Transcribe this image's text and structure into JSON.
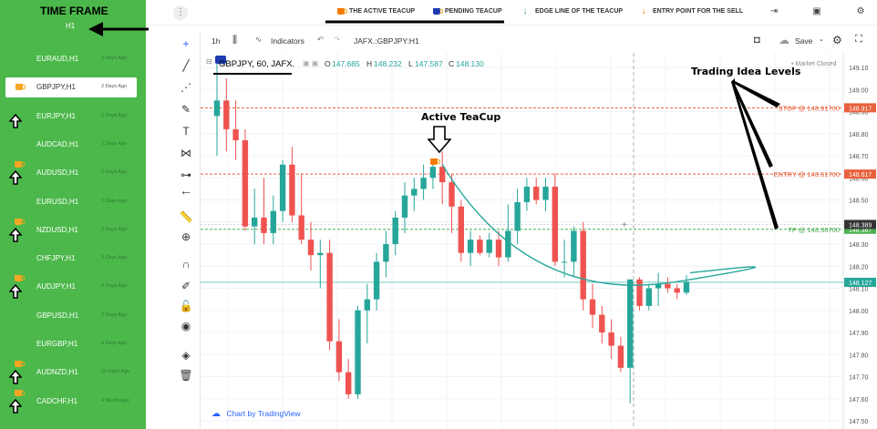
{
  "sidebar": {
    "title": "TIME FRAME",
    "timeframe": "H1",
    "items": [
      {
        "symbol": "EURAUD,H1",
        "age": "2 Days Ago",
        "active": false,
        "cup": false,
        "arrow": false
      },
      {
        "symbol": "GBPJPY,H1",
        "age": "2 Days Ago",
        "active": true,
        "cup": true,
        "arrow": false
      },
      {
        "symbol": "EURJPY,H1",
        "age": "2 Days Ago",
        "active": false,
        "cup": false,
        "arrow": true
      },
      {
        "symbol": "AUDCAD,H1",
        "age": "2 Days Ago",
        "active": false,
        "cup": false,
        "arrow": false
      },
      {
        "symbol": "AUDUSD,H1",
        "age": "2 Days Ago",
        "active": false,
        "cup": true,
        "arrow": true
      },
      {
        "symbol": "EURUSD,H1",
        "age": "2 Days Ago",
        "active": false,
        "cup": false,
        "arrow": false
      },
      {
        "symbol": "NZDUSD,H1",
        "age": "3 Days Ago",
        "active": false,
        "cup": true,
        "arrow": true
      },
      {
        "symbol": "CHFJPY,H1",
        "age": "3 Days Ago",
        "active": false,
        "cup": false,
        "arrow": false
      },
      {
        "symbol": "AUDJPY,H1",
        "age": "3 Days Ago",
        "active": false,
        "cup": true,
        "arrow": true
      },
      {
        "symbol": "GBPUSD,H1",
        "age": "3 Days Ago",
        "active": false,
        "cup": false,
        "arrow": false
      },
      {
        "symbol": "EURGBP,H1",
        "age": "4 Days Ago",
        "active": false,
        "cup": false,
        "arrow": false
      },
      {
        "symbol": "AUDNZD,H1",
        "age": "10 Days Ago",
        "active": false,
        "cup": true,
        "arrow": true
      },
      {
        "symbol": "CADCHF,H1",
        "age": "4 Month Ago",
        "active": false,
        "cup": true,
        "arrow": true
      }
    ]
  },
  "topbar": {
    "kebab": "⋮",
    "legend": [
      {
        "label": "THE ACTIVE TEACUP",
        "icon": "teacup-icon",
        "color": "#f57c00"
      },
      {
        "label": "PENDING TEACUP",
        "icon": "teacup-icon",
        "color": "#1e3ab0"
      },
      {
        "label": "EDGE LINE OF THE TEACUP",
        "icon": "arrow-down-icon",
        "color": "#2e9e5b"
      },
      {
        "label": "ENTRY POINT FOR THE SELL",
        "icon": "arrow-down-icon",
        "color": "#f57c00"
      }
    ]
  },
  "toolbar": {
    "interval": "1h",
    "indicators": "Indicators",
    "symbol": "JAFX.:GBPJPY:H1",
    "save": "Save"
  },
  "chart_header": {
    "symbol": "GBPJPY, 60, JAFX.",
    "o_label": "O",
    "o": "147.685",
    "h_label": "H",
    "h": "148.232",
    "l_label": "L",
    "l": "147.587",
    "c_label": "C",
    "c": "148.130",
    "market": "Market Closed",
    "branding": "Chart by TradingView"
  },
  "annotations": {
    "active_teacup": "Active TeaCup",
    "trading_idea": "Trading Idea Levels"
  },
  "chart_data": {
    "type": "candlestick",
    "ylim": [
      147.5,
      149.1
    ],
    "y_ticks": [
      "149.10",
      "149.00",
      "148.90",
      "148.80",
      "148.70",
      "148.60",
      "148.50",
      "148.40",
      "148.30",
      "148.20",
      "148.10",
      "148.00",
      "147.90",
      "147.80",
      "147.70",
      "147.60",
      "147.50"
    ],
    "levels": [
      {
        "name": "STOP",
        "label": "STOP @ 148.91700",
        "value": 148.917,
        "tag": "148.917",
        "color": "#e8603c"
      },
      {
        "name": "ENTRY",
        "label": "ENTRY @ 148.61700",
        "value": 148.617,
        "tag": "148.617",
        "color": "#e8603c"
      },
      {
        "name": "TP",
        "label": "TP @ 148.36700",
        "value": 148.367,
        "tag": "148.367",
        "color": "#4caf50"
      }
    ],
    "price_tags": [
      {
        "value": 148.389,
        "label": "148.389",
        "color": "#333333"
      },
      {
        "value": 148.127,
        "label": "148.127",
        "color": "#26a69a"
      }
    ],
    "candles": [
      {
        "o": 148.88,
        "h": 149.12,
        "l": 148.7,
        "c": 148.95
      },
      {
        "o": 148.95,
        "h": 149.05,
        "l": 148.72,
        "c": 148.82
      },
      {
        "o": 148.82,
        "h": 148.95,
        "l": 148.68,
        "c": 148.77
      },
      {
        "o": 148.77,
        "h": 148.82,
        "l": 148.36,
        "c": 148.38
      },
      {
        "o": 148.38,
        "h": 148.55,
        "l": 148.3,
        "c": 148.42
      },
      {
        "o": 148.42,
        "h": 148.6,
        "l": 148.3,
        "c": 148.35
      },
      {
        "o": 148.35,
        "h": 148.52,
        "l": 148.3,
        "c": 148.45
      },
      {
        "o": 148.45,
        "h": 148.68,
        "l": 148.4,
        "c": 148.66
      },
      {
        "o": 148.66,
        "h": 148.74,
        "l": 148.4,
        "c": 148.43
      },
      {
        "o": 148.43,
        "h": 148.62,
        "l": 148.3,
        "c": 148.32
      },
      {
        "o": 148.32,
        "h": 148.4,
        "l": 148.18,
        "c": 148.25
      },
      {
        "o": 148.25,
        "h": 148.32,
        "l": 148.1,
        "c": 148.26
      },
      {
        "o": 148.26,
        "h": 148.32,
        "l": 147.82,
        "c": 147.86
      },
      {
        "o": 147.86,
        "h": 147.96,
        "l": 147.68,
        "c": 147.72
      },
      {
        "o": 147.72,
        "h": 147.78,
        "l": 147.6,
        "c": 147.62
      },
      {
        "o": 147.62,
        "h": 148.02,
        "l": 147.6,
        "c": 148.0
      },
      {
        "o": 148.0,
        "h": 148.12,
        "l": 147.85,
        "c": 148.05
      },
      {
        "o": 148.05,
        "h": 148.26,
        "l": 148.0,
        "c": 148.22
      },
      {
        "o": 148.22,
        "h": 148.36,
        "l": 148.15,
        "c": 148.3
      },
      {
        "o": 148.3,
        "h": 148.45,
        "l": 148.25,
        "c": 148.42
      },
      {
        "o": 148.42,
        "h": 148.58,
        "l": 148.35,
        "c": 148.52
      },
      {
        "o": 148.52,
        "h": 148.6,
        "l": 148.45,
        "c": 148.55
      },
      {
        "o": 148.55,
        "h": 148.66,
        "l": 148.5,
        "c": 148.6
      },
      {
        "o": 148.6,
        "h": 148.68,
        "l": 148.55,
        "c": 148.65
      },
      {
        "o": 148.65,
        "h": 148.72,
        "l": 148.48,
        "c": 148.58
      },
      {
        "o": 148.58,
        "h": 148.62,
        "l": 148.35,
        "c": 148.47
      },
      {
        "o": 148.47,
        "h": 148.5,
        "l": 148.22,
        "c": 148.26
      },
      {
        "o": 148.26,
        "h": 148.36,
        "l": 148.2,
        "c": 148.32
      },
      {
        "o": 148.32,
        "h": 148.34,
        "l": 148.25,
        "c": 148.26
      },
      {
        "o": 148.26,
        "h": 148.35,
        "l": 148.24,
        "c": 148.32
      },
      {
        "o": 148.32,
        "h": 148.36,
        "l": 148.2,
        "c": 148.24
      },
      {
        "o": 148.24,
        "h": 148.48,
        "l": 148.22,
        "c": 148.36
      },
      {
        "o": 148.36,
        "h": 148.55,
        "l": 148.3,
        "c": 148.49
      },
      {
        "o": 148.49,
        "h": 148.6,
        "l": 148.45,
        "c": 148.56
      },
      {
        "o": 148.56,
        "h": 148.6,
        "l": 148.48,
        "c": 148.5
      },
      {
        "o": 148.5,
        "h": 148.6,
        "l": 148.45,
        "c": 148.56
      },
      {
        "o": 148.56,
        "h": 148.62,
        "l": 148.2,
        "c": 148.22
      },
      {
        "o": 148.22,
        "h": 148.32,
        "l": 148.15,
        "c": 148.22
      },
      {
        "o": 148.22,
        "h": 148.38,
        "l": 148.15,
        "c": 148.36
      },
      {
        "o": 148.36,
        "h": 148.4,
        "l": 148.0,
        "c": 148.05
      },
      {
        "o": 148.05,
        "h": 148.12,
        "l": 147.92,
        "c": 147.98
      },
      {
        "o": 147.98,
        "h": 148.02,
        "l": 147.85,
        "c": 147.9
      },
      {
        "o": 147.9,
        "h": 147.96,
        "l": 147.78,
        "c": 147.84
      },
      {
        "o": 147.84,
        "h": 147.88,
        "l": 147.72,
        "c": 147.74
      },
      {
        "o": 147.74,
        "h": 148.14,
        "l": 147.58,
        "c": 148.14
      },
      {
        "o": 148.14,
        "h": 148.15,
        "l": 148.0,
        "c": 148.02
      },
      {
        "o": 148.02,
        "h": 148.12,
        "l": 148.0,
        "c": 148.1
      },
      {
        "o": 148.1,
        "h": 148.17,
        "l": 148.02,
        "c": 148.12
      },
      {
        "o": 148.12,
        "h": 148.15,
        "l": 148.08,
        "c": 148.1
      },
      {
        "o": 148.1,
        "h": 148.12,
        "l": 148.05,
        "c": 148.08
      },
      {
        "o": 148.08,
        "h": 148.16,
        "l": 148.07,
        "c": 148.13
      }
    ]
  }
}
